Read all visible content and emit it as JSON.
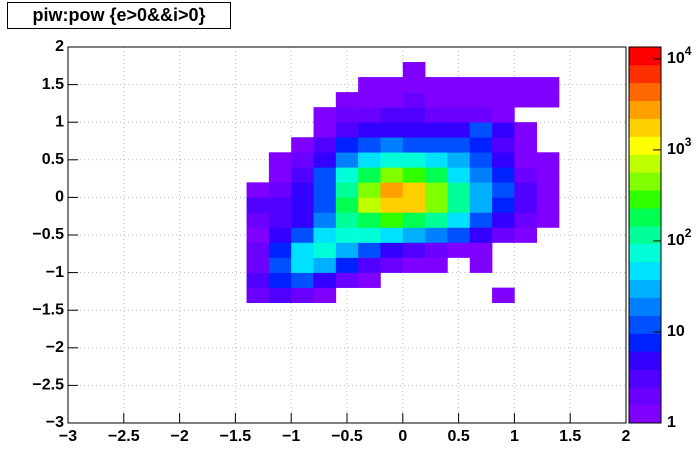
{
  "chart_data": {
    "type": "heatmap",
    "title": "piw:pow {e>0&&i>0}",
    "xlim": [
      -3,
      2
    ],
    "ylim": [
      -3,
      2
    ],
    "xticks": [
      {
        "value": -3,
        "label": "−3"
      },
      {
        "value": -2.5,
        "label": "−2.5"
      },
      {
        "value": -2,
        "label": "−2"
      },
      {
        "value": -1.5,
        "label": "−1.5"
      },
      {
        "value": -1,
        "label": "−1"
      },
      {
        "value": -0.5,
        "label": "−0.5"
      },
      0,
      0.5,
      1,
      1.5,
      2
    ],
    "yticks": [
      {
        "value": -3,
        "label": "−3"
      },
      {
        "value": -2.5,
        "label": "−2.5"
      },
      {
        "value": -2,
        "label": "−2"
      },
      {
        "value": -1.5,
        "label": "−1.5"
      },
      {
        "value": -1,
        "label": "−1"
      },
      {
        "value": -0.5,
        "label": "−0.5"
      },
      0,
      0.5,
      1,
      1.5,
      2
    ],
    "grid": true,
    "zlog": true,
    "zlim": [
      1,
      13500
    ],
    "zticks": [
      1,
      10,
      {
        "value": 100,
        "label": "10^2"
      },
      {
        "value": 1000,
        "label": "10^3"
      },
      {
        "value": 10000,
        "label": "10^4"
      }
    ],
    "palette": [
      "#8000ff",
      "#6a00ff",
      "#5000ff",
      "#3300ff",
      "#0022ff",
      "#0050ff",
      "#0080ff",
      "#00b0ff",
      "#00e0ff",
      "#00ffd8",
      "#00ff98",
      "#00ff50",
      "#30ff00",
      "#80ff00",
      "#c0ff00",
      "#ffff00",
      "#ffd000",
      "#ffa000",
      "#ff6800",
      "#ff3000",
      "#ff0000"
    ],
    "xbins": [
      -1.4,
      -1.2,
      -1.0,
      -0.8,
      -0.6,
      -0.4,
      -0.2,
      0,
      0.2,
      0.4,
      0.6,
      0.8,
      1.0,
      1.2,
      1.4,
      1.6,
      1.8
    ],
    "ybins": [
      -1.4,
      -1.2,
      -1.0,
      -0.8,
      -0.6,
      -0.4,
      -0.2,
      0,
      0.2,
      0.4,
      0.6,
      0.8,
      1.0,
      1.2,
      1.4,
      1.6,
      1.8
    ],
    "z": [
      [
        2,
        3,
        2,
        1,
        0,
        0,
        0,
        0,
        0,
        0,
        0,
        1,
        0,
        0,
        0,
        0
      ],
      [
        3,
        8,
        10,
        5,
        2,
        1,
        0,
        0,
        0,
        0,
        0,
        0,
        0,
        0,
        0,
        0
      ],
      [
        2,
        15,
        40,
        25,
        8,
        3,
        2,
        1,
        1,
        0,
        1,
        0,
        0,
        0,
        0,
        0
      ],
      [
        2,
        8,
        40,
        60,
        30,
        10,
        5,
        3,
        2,
        1,
        1,
        0,
        0,
        0,
        0,
        0
      ],
      [
        1,
        4,
        15,
        50,
        80,
        60,
        40,
        30,
        20,
        10,
        4,
        2,
        1,
        0,
        0,
        0
      ],
      [
        2,
        3,
        6,
        20,
        100,
        200,
        250,
        200,
        120,
        50,
        15,
        5,
        2,
        1,
        0,
        0
      ],
      [
        3,
        3,
        5,
        15,
        150,
        600,
        2000,
        1500,
        400,
        100,
        25,
        8,
        3,
        1,
        0,
        0
      ],
      [
        1,
        2,
        5,
        15,
        120,
        500,
        3000,
        2000,
        400,
        100,
        30,
        10,
        3,
        1,
        0,
        0
      ],
      [
        0,
        1,
        3,
        10,
        60,
        200,
        400,
        300,
        150,
        50,
        20,
        8,
        2,
        1,
        0,
        0
      ],
      [
        0,
        1,
        2,
        5,
        20,
        50,
        80,
        60,
        40,
        25,
        15,
        5,
        1,
        1,
        0,
        0
      ],
      [
        0,
        0,
        1,
        3,
        8,
        15,
        20,
        15,
        10,
        10,
        8,
        3,
        1,
        0,
        0,
        0
      ],
      [
        0,
        0,
        0,
        1,
        3,
        5,
        5,
        5,
        4,
        4,
        10,
        4,
        1,
        0,
        0,
        0
      ],
      [
        0,
        0,
        0,
        1,
        2,
        2,
        3,
        3,
        2,
        2,
        2,
        1,
        0,
        0,
        0,
        0
      ],
      [
        0,
        0,
        0,
        0,
        1,
        1,
        1,
        2,
        1,
        1,
        1,
        1,
        1,
        1,
        0,
        0
      ],
      [
        0,
        0,
        0,
        0,
        0,
        1,
        1,
        1,
        1,
        1,
        1,
        1,
        1,
        1,
        0,
        0
      ],
      [
        0,
        0,
        0,
        0,
        0,
        0,
        0,
        1,
        0,
        0,
        0,
        0,
        0,
        0,
        0,
        0
      ]
    ]
  }
}
